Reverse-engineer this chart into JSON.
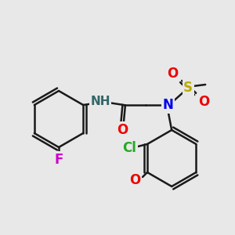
{
  "bg_color": "#e8e8e8",
  "bond_color": "#1a1a1a",
  "bond_width": 1.8,
  "atom_colors": {
    "F": "#cc00cc",
    "N": "#0000ee",
    "NH": "#336666",
    "O": "#ee0000",
    "S": "#bbaa00",
    "Cl": "#22aa22",
    "C": "#1a1a1a"
  },
  "font_size": 12,
  "font_size_small": 10
}
